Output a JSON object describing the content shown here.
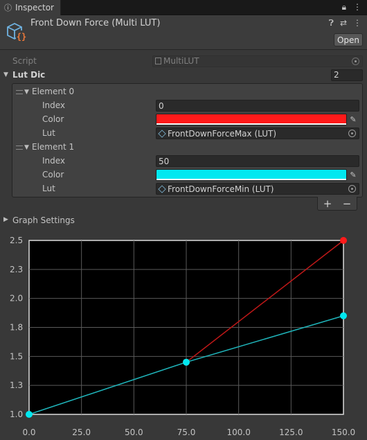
{
  "tab": {
    "label": "Inspector"
  },
  "header": {
    "title": "Front Down Force (Multi LUT)",
    "open_label": "Open"
  },
  "script_row": {
    "label": "Script",
    "value": "MultiLUT"
  },
  "lut_dic": {
    "label": "Lut Dic",
    "count": "2"
  },
  "elements": [
    {
      "title": "Element 0",
      "index_label": "Index",
      "index_value": "0",
      "color_label": "Color",
      "color": "#ff1a1a",
      "lut_label": "Lut",
      "lut_value": "FrontDownForceMax (LUT)"
    },
    {
      "title": "Element 1",
      "index_label": "Index",
      "index_value": "50",
      "color_label": "Color",
      "color": "#00e8f0",
      "lut_label": "Lut",
      "lut_value": "FrontDownForceMin (LUT)"
    }
  ],
  "list_buttons": {
    "add": "+",
    "remove": "−"
  },
  "graph_settings": {
    "label": "Graph Settings"
  },
  "chart_data": {
    "type": "line",
    "x_ticks": [
      "0.0",
      "25.0",
      "50.0",
      "75.0",
      "100.0",
      "125.0",
      "150.0"
    ],
    "y_ticks": [
      "1.0",
      "1.3",
      "1.5",
      "1.8",
      "2.0",
      "2.3",
      "2.5"
    ],
    "xlim": [
      0,
      150
    ],
    "ylim": [
      1.0,
      2.5
    ],
    "grid": true,
    "series": [
      {
        "color": "#ff1a1a",
        "line_color": "#c01818",
        "points": [
          [
            75,
            1.45
          ],
          [
            150,
            2.5
          ]
        ]
      },
      {
        "color": "#00e8f0",
        "line_color": "#1fb5bb",
        "points": [
          [
            0,
            1.0
          ],
          [
            75,
            1.45
          ],
          [
            150,
            1.85
          ]
        ]
      }
    ]
  }
}
